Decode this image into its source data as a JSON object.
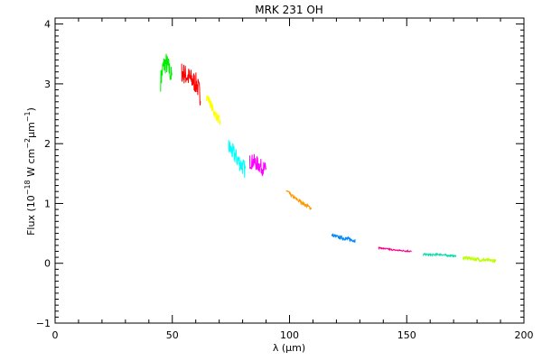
{
  "chart_data": {
    "type": "line",
    "title": "MRK 231 OH",
    "xlabel": "λ (μm)",
    "ylabel": "Flux (10",
    "ylabel_exp1": "−18",
    "ylabel_mid": " W cm",
    "ylabel_exp2": "−2",
    "ylabel_mid2": "μm",
    "ylabel_exp3": "−1",
    "ylabel_end": ")",
    "xlim": [
      0,
      200
    ],
    "ylim": [
      -1,
      4.1
    ],
    "xticks": [
      0,
      50,
      100,
      150,
      200
    ],
    "xtick_labels": [
      "0",
      "50",
      "100",
      "150",
      "200"
    ],
    "yticks": [
      -1,
      0,
      1,
      2,
      3,
      4
    ],
    "ytick_labels": [
      "−1",
      "0",
      "1",
      "2",
      "3",
      "4"
    ],
    "grid": false,
    "series": [
      {
        "color": "#00ee00",
        "x": [
          45.0,
          46.2,
          47.4,
          48.6,
          49.8
        ],
        "y": [
          3.05,
          3.3,
          3.35,
          3.25,
          3.1
        ],
        "noise": 0.18
      },
      {
        "color": "#ff0000",
        "x": [
          54.0,
          55.6,
          57.2,
          58.8,
          60.4,
          62.0
        ],
        "y": [
          3.2,
          3.15,
          3.1,
          3.05,
          3.0,
          2.8
        ],
        "noise": 0.18
      },
      {
        "color": "#ffff00",
        "x": [
          64.5,
          66.0,
          67.5,
          69.0,
          70.5
        ],
        "y": [
          2.8,
          2.7,
          2.55,
          2.45,
          2.35
        ],
        "noise": 0.08
      },
      {
        "color": "#00ffff",
        "x": [
          74.0,
          75.8,
          77.6,
          79.4,
          81.2
        ],
        "y": [
          1.95,
          1.85,
          1.75,
          1.65,
          1.55
        ],
        "noise": 0.15
      },
      {
        "color": "#ff00ff",
        "x": [
          83.0,
          84.8,
          86.6,
          88.4,
          90.0
        ],
        "y": [
          1.7,
          1.7,
          1.65,
          1.6,
          1.55
        ],
        "noise": 0.13
      },
      {
        "color": "#ff9900",
        "x": [
          98.5,
          101.2,
          103.9,
          106.6,
          109.3
        ],
        "y": [
          1.22,
          1.12,
          1.05,
          0.98,
          0.92
        ],
        "noise": 0.03
      },
      {
        "color": "#0088ff",
        "x": [
          118.0,
          120.5,
          123.0,
          125.5,
          128.0
        ],
        "y": [
          0.47,
          0.44,
          0.42,
          0.4,
          0.38
        ],
        "noise": 0.03
      },
      {
        "color": "#ff0088",
        "x": [
          138.0,
          141.5,
          145.0,
          148.5,
          152.0
        ],
        "y": [
          0.26,
          0.24,
          0.22,
          0.21,
          0.2
        ],
        "noise": 0.012
      },
      {
        "color": "#00ddaa",
        "x": [
          157.0,
          160.5,
          164.0,
          167.5,
          171.0
        ],
        "y": [
          0.15,
          0.14,
          0.15,
          0.13,
          0.12
        ],
        "noise": 0.015
      },
      {
        "color": "#bbff00",
        "x": [
          174.0,
          177.5,
          181.0,
          184.5,
          188.0
        ],
        "y": [
          0.09,
          0.08,
          0.06,
          0.05,
          0.04
        ],
        "noise": 0.03
      }
    ]
  }
}
